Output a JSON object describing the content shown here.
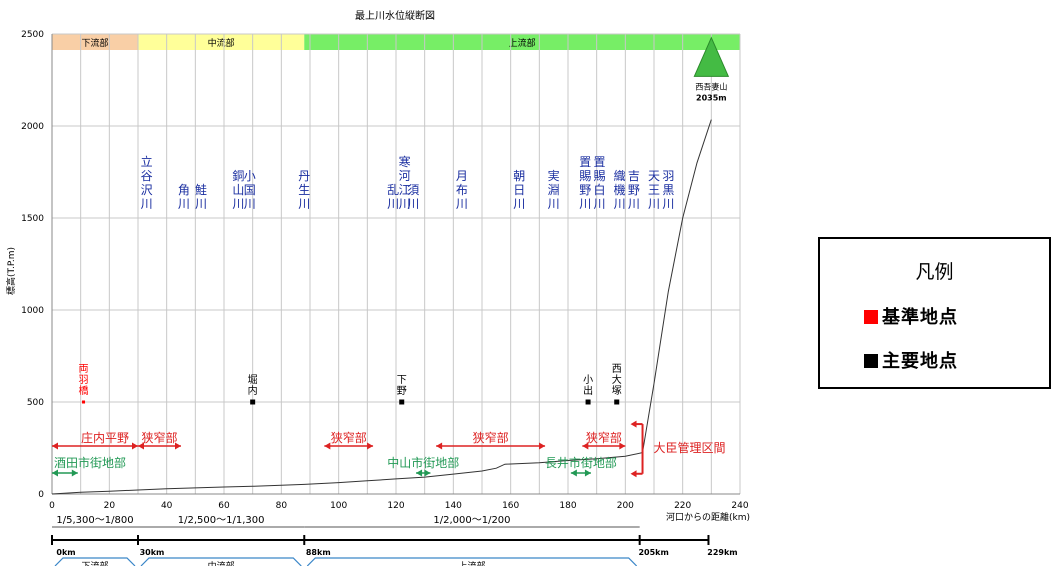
{
  "chart_data": {
    "type": "line",
    "title": "最上川水位縦断図",
    "ylabel": "標高(T.P.m)",
    "xlabel": "河口からの距離(km)",
    "xlim": [
      0,
      240
    ],
    "ylim": [
      0,
      2500
    ],
    "xticks": [
      0,
      20,
      40,
      60,
      80,
      100,
      120,
      140,
      160,
      180,
      200,
      220,
      240
    ],
    "yticks": [
      0,
      500,
      1000,
      1500,
      2000,
      2500
    ],
    "grid": true,
    "series": [
      {
        "profile": [
          [
            0,
            0
          ],
          [
            10,
            10
          ],
          [
            20,
            15
          ],
          [
            30,
            22
          ],
          [
            40,
            28
          ],
          [
            50,
            33
          ],
          [
            60,
            38
          ],
          [
            70,
            42
          ],
          [
            80,
            48
          ],
          [
            88,
            52
          ],
          [
            100,
            62
          ],
          [
            110,
            72
          ],
          [
            120,
            82
          ],
          [
            130,
            92
          ],
          [
            140,
            108
          ],
          [
            150,
            125
          ],
          [
            155,
            140
          ],
          [
            158,
            162
          ],
          [
            170,
            170
          ],
          [
            180,
            182
          ],
          [
            190,
            192
          ],
          [
            200,
            205
          ],
          [
            206,
            225
          ],
          [
            210,
            600
          ],
          [
            215,
            1100
          ],
          [
            220,
            1500
          ],
          [
            225,
            1800
          ],
          [
            230,
            2035
          ]
        ]
      }
    ],
    "sections": [
      {
        "label": "下流部",
        "from": 0,
        "to": 30,
        "color": "#f9cfa6"
      },
      {
        "label": "中流部",
        "from": 30,
        "to": 88,
        "color": "#ffff99"
      },
      {
        "label": "上流部",
        "from": 88,
        "to": 240,
        "color": "#77ee66"
      }
    ],
    "tributaries": [
      {
        "x": 33,
        "label": "立谷沢川"
      },
      {
        "x": 46,
        "label": "角川"
      },
      {
        "x": 52,
        "label": "鮭川"
      },
      {
        "x": 65,
        "label": "銅山川"
      },
      {
        "x": 69,
        "label": "小国川"
      },
      {
        "x": 88,
        "label": "丹生川"
      },
      {
        "x": 119,
        "label": "乱川"
      },
      {
        "x": 123,
        "label": "寒河江川"
      },
      {
        "x": 126,
        "label": "須川"
      },
      {
        "x": 143,
        "label": "月布川"
      },
      {
        "x": 163,
        "label": "朝日川"
      },
      {
        "x": 175,
        "label": "実淵川"
      },
      {
        "x": 186,
        "label": "置賜野川"
      },
      {
        "x": 191,
        "label": "置賜白川"
      },
      {
        "x": 198,
        "label": "織機川"
      },
      {
        "x": 203,
        "label": "吉野川"
      },
      {
        "x": 210,
        "label": "天王川"
      },
      {
        "x": 215,
        "label": "羽黒川"
      }
    ],
    "points": [
      {
        "x": 11,
        "y": 500,
        "label": "両羽橋",
        "kind": "基準地点",
        "color": "#ff0000"
      },
      {
        "x": 70,
        "y": 500,
        "label": "堀内",
        "kind": "主要地点",
        "color": "#000000"
      },
      {
        "x": 122,
        "y": 500,
        "label": "下野",
        "kind": "主要地点",
        "color": "#000000"
      },
      {
        "x": 187,
        "y": 500,
        "label": "小出",
        "kind": "主要地点",
        "color": "#000000"
      },
      {
        "x": 197,
        "y": 500,
        "label": "西大塚",
        "kind": "主要地点",
        "color": "#000000"
      }
    ],
    "summit": {
      "x": 230,
      "y": 2035,
      "name": "西吾妻山",
      "elev": "2035m"
    },
    "red_arrows": [
      {
        "from": 0,
        "to": 30,
        "label": "庄内平野"
      },
      {
        "from": 30,
        "to": 45,
        "label": "狭窄部"
      },
      {
        "from": 95,
        "to": 112,
        "label": "狭窄部"
      },
      {
        "from": 134,
        "to": 172,
        "label": "狭窄部"
      },
      {
        "from": 185,
        "to": 200,
        "label": "狭窄部"
      }
    ],
    "green_arrows": [
      {
        "from": 0,
        "to": 9,
        "label": "酒田市街地部"
      },
      {
        "from": 127,
        "to": 132,
        "label": "中山市街地部"
      },
      {
        "from": 181,
        "to": 188,
        "label": "長井市街地部"
      }
    ],
    "management": {
      "x": 206,
      "label": "大臣管理区間"
    },
    "slope_segments": [
      {
        "from": 0,
        "to": 30,
        "label": "1/5,300～1/800"
      },
      {
        "from": 30,
        "to": 88,
        "label": "1/2,500～1/1,300"
      },
      {
        "from": 88,
        "to": 205,
        "label": "1/2,000～1/200"
      }
    ],
    "km_marks": [
      "0km",
      "30km",
      "88km",
      "205km",
      "229km"
    ],
    "km_values": [
      0,
      30,
      88,
      205,
      229
    ],
    "bottom_sections": [
      "下流部",
      "中流部",
      "上流部"
    ]
  },
  "legend": {
    "title": "凡例",
    "items": [
      {
        "label": "基準地点",
        "color": "#ff0000"
      },
      {
        "label": "主要地点",
        "color": "#000000"
      }
    ]
  }
}
